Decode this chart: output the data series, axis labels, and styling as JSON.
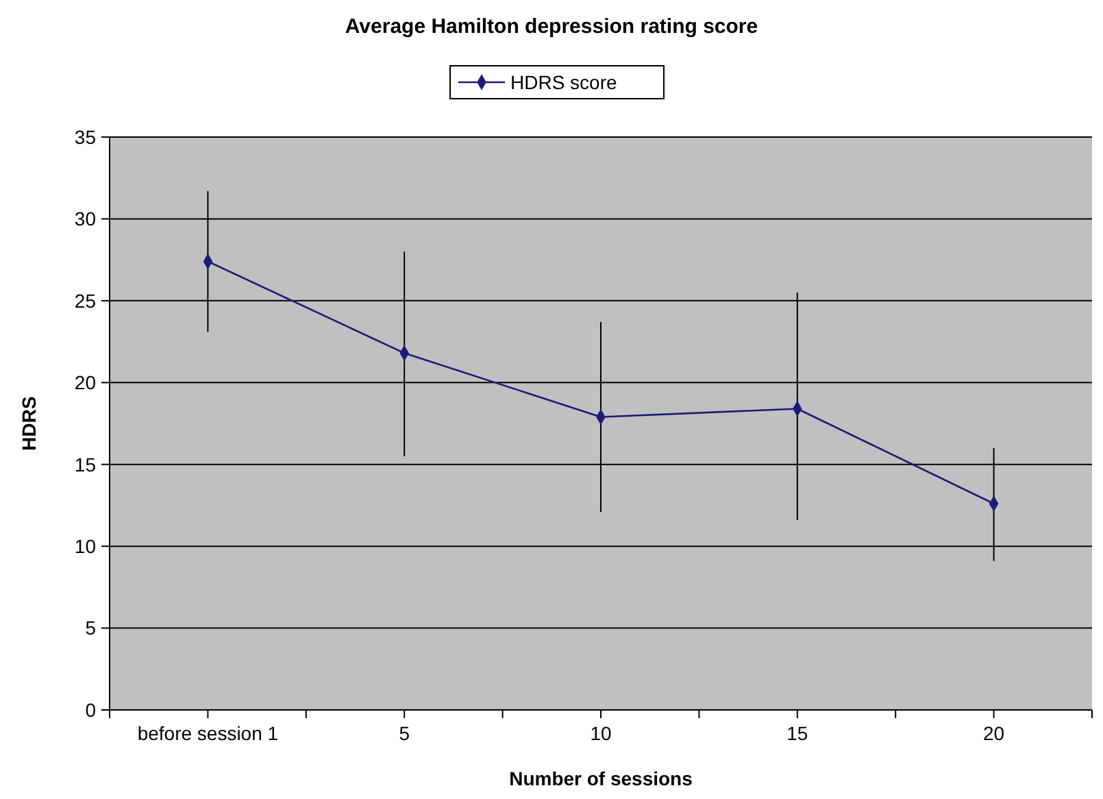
{
  "chart_data": {
    "type": "line",
    "title": "Average Hamilton depression rating score",
    "xlabel": "Number of sessions",
    "ylabel": "HDRS",
    "categories": [
      "before session 1",
      "5",
      "10",
      "15",
      "20"
    ],
    "series": [
      {
        "name": "HDRS score",
        "color": "#1c1c78",
        "values": [
          27.4,
          21.8,
          17.9,
          18.4,
          12.6
        ],
        "errors": [
          [
            23.1,
            31.7
          ],
          [
            15.5,
            28.0
          ],
          [
            12.1,
            23.7
          ],
          [
            11.6,
            25.5
          ],
          [
            9.1,
            16.0
          ]
        ]
      }
    ],
    "ylim": [
      0,
      35
    ],
    "yticks": [
      0,
      5,
      10,
      15,
      20,
      25,
      30,
      35
    ],
    "grid": "y",
    "legend": "top",
    "marker": "diamond",
    "line_style": "solid"
  }
}
